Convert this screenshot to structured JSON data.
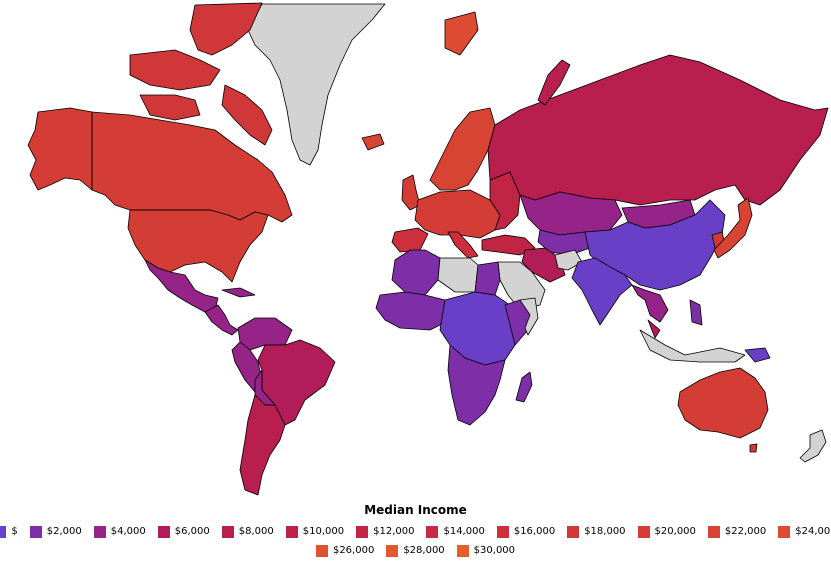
{
  "legend": {
    "title": "Median Income",
    "items": [
      {
        "label": "$",
        "color": "#6a3fc8"
      },
      {
        "label": "$2,000",
        "color": "#7e2fa8"
      },
      {
        "label": "$4,000",
        "color": "#962488"
      },
      {
        "label": "$6,000",
        "color": "#b21c58"
      },
      {
        "label": "$8,000",
        "color": "#b81e4e"
      },
      {
        "label": "$10,000",
        "color": "#bd2048"
      },
      {
        "label": "$12,000",
        "color": "#c22444"
      },
      {
        "label": "$14,000",
        "color": "#c82a40"
      },
      {
        "label": "$16,000",
        "color": "#cd303c"
      },
      {
        "label": "$18,000",
        "color": "#d03738"
      },
      {
        "label": "$20,000",
        "color": "#d43d36"
      },
      {
        "label": "$22,000",
        "color": "#d84434"
      },
      {
        "label": "$24,000",
        "color": "#dc4b32"
      },
      {
        "label": "$26,000",
        "color": "#df5230"
      },
      {
        "label": "$28,000",
        "color": "#e2582f"
      },
      {
        "label": "$30,000",
        "color": "#e55e2e"
      }
    ]
  },
  "no_data_color": "#d3d3d3"
}
